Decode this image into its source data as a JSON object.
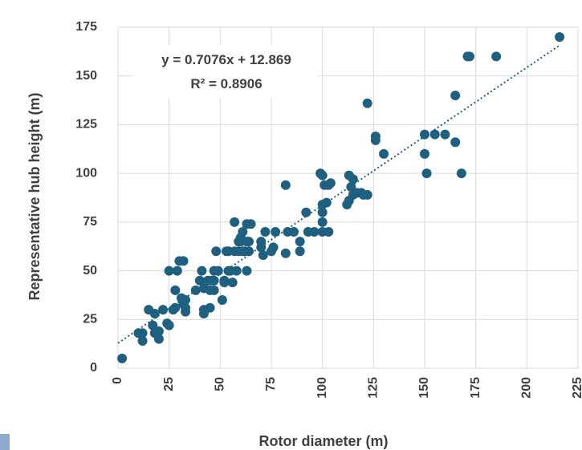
{
  "chart_data": {
    "type": "scatter",
    "xlabel": "Rotor diameter (m)",
    "ylabel": "Representative hub height (m)",
    "xlim": [
      0,
      225
    ],
    "ylim": [
      0,
      175
    ],
    "x_ticks": [
      "0",
      "25",
      "50",
      "75",
      "100",
      "125",
      "150",
      "175",
      "200",
      "225"
    ],
    "y_ticks": [
      "0",
      "25",
      "50",
      "75",
      "100",
      "125",
      "150",
      "175"
    ],
    "grid": true,
    "legend": "none",
    "trendline": {
      "type": "linear",
      "slope": 0.7076,
      "intercept": 12.869,
      "style": "dotted",
      "equation_label": "y = 0.7076x + 12.869",
      "r2_label": "R² = 0.8906"
    },
    "marker_color": "#1f5f7f",
    "trendline_color": "#1f5f7f",
    "points": [
      [
        2,
        5
      ],
      [
        10,
        18
      ],
      [
        12,
        18
      ],
      [
        12,
        14
      ],
      [
        15,
        30
      ],
      [
        17,
        22
      ],
      [
        18,
        28
      ],
      [
        18,
        18
      ],
      [
        20,
        19
      ],
      [
        20,
        15
      ],
      [
        22,
        30
      ],
      [
        24,
        23
      ],
      [
        25,
        22
      ],
      [
        25,
        50
      ],
      [
        27,
        30
      ],
      [
        28,
        40
      ],
      [
        28,
        31
      ],
      [
        29,
        50
      ],
      [
        30,
        55
      ],
      [
        31,
        36
      ],
      [
        32,
        55
      ],
      [
        32,
        33
      ],
      [
        33,
        31
      ],
      [
        33,
        29
      ],
      [
        33,
        35
      ],
      [
        38,
        40
      ],
      [
        40,
        45
      ],
      [
        41,
        50
      ],
      [
        42,
        41
      ],
      [
        42,
        44
      ],
      [
        42,
        30
      ],
      [
        42,
        28
      ],
      [
        44,
        45
      ],
      [
        45,
        31
      ],
      [
        45,
        40
      ],
      [
        46,
        45
      ],
      [
        47,
        40
      ],
      [
        47,
        45
      ],
      [
        47,
        50
      ],
      [
        48,
        60
      ],
      [
        49,
        50
      ],
      [
        51,
        35
      ],
      [
        52,
        44
      ],
      [
        52,
        45
      ],
      [
        53,
        60
      ],
      [
        54,
        60
      ],
      [
        54,
        50
      ],
      [
        55,
        50
      ],
      [
        56,
        44
      ],
      [
        57,
        75
      ],
      [
        57,
        60
      ],
      [
        58,
        50
      ],
      [
        59,
        60
      ],
      [
        59,
        65
      ],
      [
        60,
        67
      ],
      [
        60,
        65
      ],
      [
        61,
        70
      ],
      [
        61,
        60
      ],
      [
        62,
        60
      ],
      [
        63,
        65
      ],
      [
        63,
        74
      ],
      [
        63,
        50
      ],
      [
        64,
        60
      ],
      [
        64,
        65
      ],
      [
        65,
        74
      ],
      [
        70,
        65
      ],
      [
        70,
        62
      ],
      [
        71,
        58
      ],
      [
        72,
        70
      ],
      [
        75,
        60
      ],
      [
        76,
        62
      ],
      [
        77,
        70
      ],
      [
        82,
        59
      ],
      [
        82,
        94
      ],
      [
        83,
        70
      ],
      [
        86,
        70
      ],
      [
        89,
        65
      ],
      [
        89,
        60
      ],
      [
        92,
        80
      ],
      [
        93,
        70
      ],
      [
        96,
        70
      ],
      [
        99,
        100
      ],
      [
        100,
        99
      ],
      [
        100,
        75
      ],
      [
        100,
        70
      ],
      [
        100,
        84
      ],
      [
        100,
        80
      ],
      [
        101,
        94
      ],
      [
        102,
        85
      ],
      [
        103,
        70
      ],
      [
        103,
        94
      ],
      [
        104,
        95
      ],
      [
        112,
        84
      ],
      [
        113,
        86
      ],
      [
        113,
        99
      ],
      [
        114,
        93
      ],
      [
        115,
        97
      ],
      [
        115,
        89
      ],
      [
        117,
        90
      ],
      [
        119,
        90
      ],
      [
        120,
        89
      ],
      [
        122,
        89
      ],
      [
        122,
        136
      ],
      [
        126,
        119
      ],
      [
        126,
        117
      ],
      [
        130,
        110
      ],
      [
        150,
        120
      ],
      [
        150,
        110
      ],
      [
        151,
        100
      ],
      [
        155,
        120
      ],
      [
        160,
        120
      ],
      [
        165,
        140
      ],
      [
        165,
        116
      ],
      [
        168,
        100
      ],
      [
        171,
        160
      ],
      [
        172,
        160
      ],
      [
        185,
        160
      ],
      [
        216,
        170
      ]
    ]
  }
}
